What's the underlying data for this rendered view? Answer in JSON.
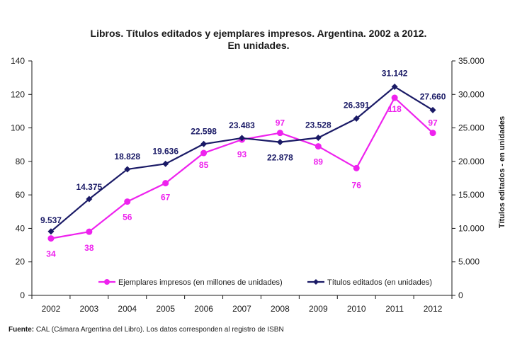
{
  "chart_data": {
    "type": "line",
    "title_line1": "Libros. Títulos editados y ejemplares impresos. Argentina. 2002 a 2012.",
    "title_line2": "En unidades.",
    "categories": [
      "2002",
      "2003",
      "2004",
      "2005",
      "2006",
      "2007",
      "2008",
      "2009",
      "2010",
      "2011",
      "2012"
    ],
    "ylim_left": [
      0,
      140
    ],
    "yticks_left": [
      "0",
      "20",
      "40",
      "60",
      "80",
      "100",
      "120",
      "140"
    ],
    "ylim_right": [
      0,
      35000
    ],
    "yticks_right": [
      "0",
      "5.000",
      "10.000",
      "15.000",
      "20.000",
      "25.000",
      "30.000",
      "35.000"
    ],
    "ylabel_right": "Títulos editados - en unidades",
    "grid": false,
    "legend_position": "bottom-inside",
    "series": [
      {
        "name": "Ejemplares impresos (en millones de unidades)",
        "axis": "left",
        "color": "#ee22ee",
        "marker": "circle",
        "values": [
          34,
          38,
          56,
          67,
          85,
          93,
          97,
          89,
          76,
          118,
          97
        ],
        "labels": [
          "34",
          "38",
          "56",
          "67",
          "85",
          "93",
          "97",
          "89",
          "76",
          "118",
          "97"
        ]
      },
      {
        "name": "Títulos editados (en unidades)",
        "axis": "right",
        "color": "#1a1a66",
        "marker": "diamond",
        "values": [
          9537,
          14375,
          18828,
          19636,
          22598,
          23483,
          22878,
          23528,
          26391,
          31142,
          27660
        ],
        "labels": [
          "9.537",
          "14.375",
          "18.828",
          "19.636",
          "22.598",
          "23.483",
          "22.878",
          "23.528",
          "26.391",
          "31.142",
          "27.660"
        ]
      }
    ]
  },
  "footer": {
    "source_label": "Fuente:",
    "source_text": " CAL (Cámara Argentina del Libro). Los datos corresponden al registro de ISBN"
  }
}
